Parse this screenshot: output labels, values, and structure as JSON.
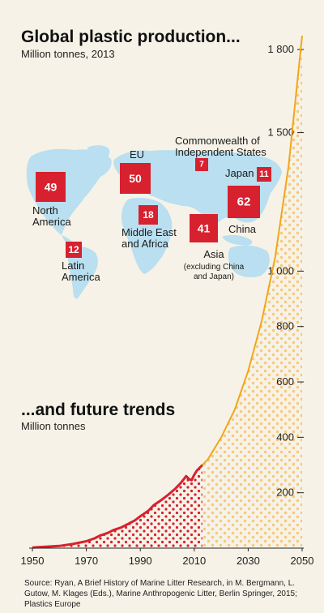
{
  "header": {
    "title": "Global plastic production...",
    "subtitle": "Million tonnes, 2013"
  },
  "colors": {
    "background": "#f6f2e7",
    "map": "#b9dff0",
    "red": "#d7212f",
    "orange": "#f2a61c",
    "orange_dots": "#f6c97c"
  },
  "regions": [
    {
      "name": "North America",
      "label_lines": [
        "North",
        "America"
      ],
      "value": 49
    },
    {
      "name": "Latin America",
      "label_lines": [
        "Latin",
        "America"
      ],
      "value": 12
    },
    {
      "name": "EU",
      "label_lines": [
        "EU"
      ],
      "value": 50
    },
    {
      "name": "Middle East and Africa",
      "label_lines": [
        "Middle East",
        "and Africa"
      ],
      "value": 18
    },
    {
      "name": "Commonwealth of Independent States",
      "label_lines": [
        "Commonwealth of",
        "Independent States"
      ],
      "value": 7
    },
    {
      "name": "Asia",
      "label_lines": [
        "Asia"
      ],
      "note_lines": [
        "(excluding China",
        "and Japan)"
      ],
      "value": 41
    },
    {
      "name": "Japan",
      "label_lines": [
        "Japan"
      ],
      "value": 11
    },
    {
      "name": "China",
      "label_lines": [
        "China"
      ],
      "value": 62
    }
  ],
  "trends": {
    "title": "...and future trends",
    "subtitle": "Million tonnes"
  },
  "chart_data": {
    "type": "area",
    "title": "...and future trends",
    "ylabel": "Million tonnes",
    "xlim": [
      1950,
      2050
    ],
    "ylim": [
      0,
      1850
    ],
    "x_ticks": [
      1950,
      1970,
      1990,
      2010,
      2030,
      2050
    ],
    "y_ticks": [
      200,
      400,
      600,
      800,
      1000,
      1500,
      1800
    ],
    "y_tick_labels": [
      "200",
      "400",
      "600",
      "800",
      "1 000",
      "1 500",
      "1 800"
    ],
    "y_axis_position": "right",
    "series": [
      {
        "segment": "historical",
        "color": "#d7212f",
        "x": [
          1950,
          1955,
          1960,
          1965,
          1970,
          1973,
          1975,
          1978,
          1980,
          1983,
          1985,
          1988,
          1990,
          1993,
          1995,
          1998,
          2000,
          2003,
          2005,
          2007,
          2008,
          2009,
          2010,
          2011,
          2012,
          2013
        ],
        "y": [
          2,
          5,
          8,
          15,
          25,
          35,
          45,
          55,
          65,
          75,
          85,
          100,
          115,
          135,
          155,
          175,
          190,
          215,
          235,
          260,
          250,
          245,
          265,
          280,
          290,
          300
        ]
      },
      {
        "segment": "projected",
        "color": "#f2a61c",
        "x": [
          2013,
          2015,
          2020,
          2025,
          2030,
          2035,
          2040,
          2045,
          2050
        ],
        "y": [
          300,
          320,
          400,
          500,
          640,
          820,
          1050,
          1380,
          1850
        ]
      }
    ]
  },
  "source": "Source: Ryan, A Brief History of Marine Litter Research, in M. Bergmann, L. Gutow, M. Klages (Eds.), Marine Anthropogenic Litter, Berlin Springer, 2015; Plastics Europe"
}
